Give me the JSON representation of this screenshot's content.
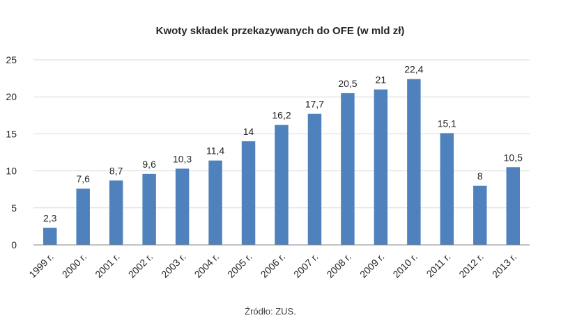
{
  "chart_data": {
    "type": "bar",
    "title": "Kwoty składek przekazywanych  do OFE (w mld zł)",
    "source": "Źródło: ZUS.",
    "categories": [
      "1999 r.",
      "2000 r.",
      "2001 r.",
      "2002 r.",
      "2003 r.",
      "2004 r.",
      "2005 r.",
      "2006 r.",
      "2007 r.",
      "2008 r.",
      "2009 r.",
      "2010 r.",
      "2011 r.",
      "2012 r.",
      "2013 r."
    ],
    "values": [
      2.3,
      7.6,
      8.7,
      9.6,
      10.3,
      11.4,
      14,
      16.2,
      17.7,
      20.5,
      21,
      22.4,
      15.1,
      8,
      10.5
    ],
    "data_labels": [
      "2,3",
      "7,6",
      "8,7",
      "9,6",
      "10,3",
      "11,4",
      "14",
      "16,2",
      "17,7",
      "20,5",
      "21",
      "22,4",
      "15,1",
      "8",
      "10,5"
    ],
    "ylim": [
      0,
      25
    ],
    "yticks": [
      0,
      5,
      10,
      15,
      20,
      25
    ],
    "ytick_labels": [
      "0",
      "5",
      "10",
      "15",
      "20",
      "25"
    ],
    "xlabel": "",
    "ylabel": "",
    "grid": true,
    "bar_color": "#4F81BD",
    "grid_color": "#D9D9D9",
    "axis_color": "#868686"
  }
}
